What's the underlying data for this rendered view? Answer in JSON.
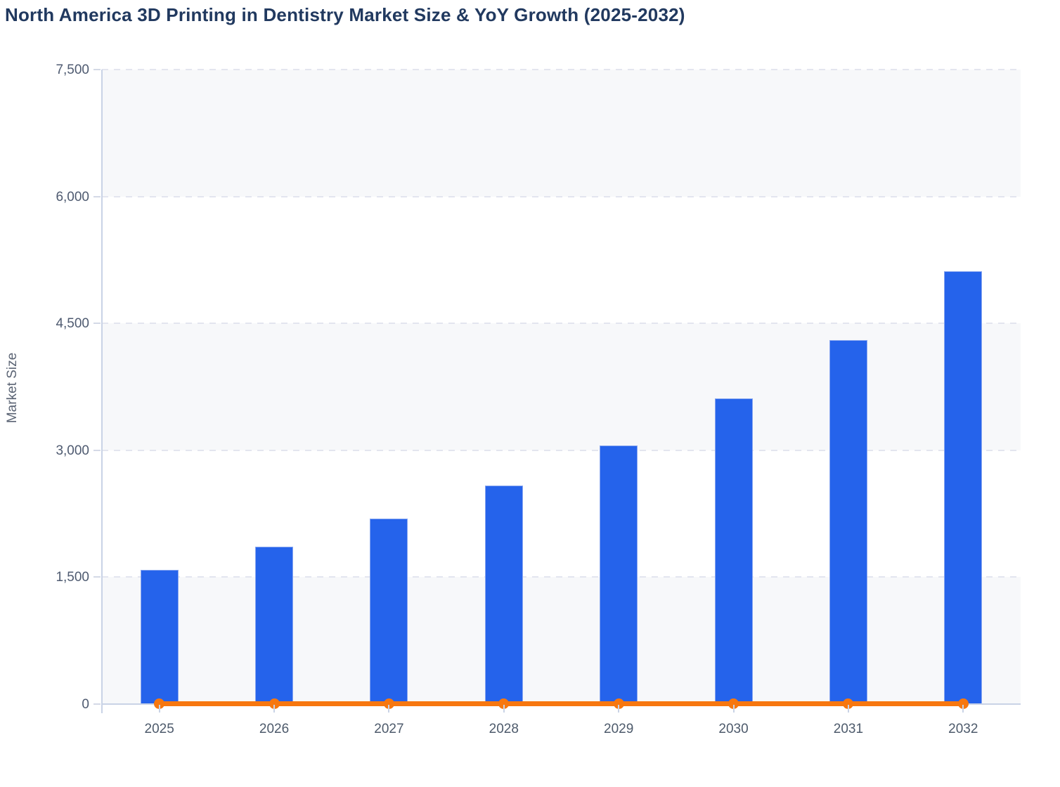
{
  "title": "North America 3D Printing in Dentistry Market Size & YoY Growth (2025-2032)",
  "chart_data": {
    "type": "bar",
    "title": "North America 3D Printing in Dentistry Market Size & YoY Growth (2025-2032)",
    "xlabel": "",
    "ylabel": "Market Size",
    "categories": [
      "2025",
      "2026",
      "2027",
      "2028",
      "2029",
      "2030",
      "2031",
      "2032"
    ],
    "series": [
      {
        "name": "Market Size",
        "type": "bar",
        "color": "#2563eb",
        "values": [
          1590,
          1860,
          2190,
          2580,
          3060,
          3610,
          4300,
          5120
        ]
      },
      {
        "name": "YoY Growth",
        "type": "line",
        "color": "#f7770f",
        "marker": "circle",
        "values": [
          0,
          0,
          0,
          0,
          0,
          0,
          0,
          0
        ],
        "note": "line renders flat along the zero baseline with a round marker at every year; no secondary axis labels are visible"
      }
    ],
    "ylim": [
      0,
      7500
    ],
    "yticks": [
      0,
      1500,
      3000,
      4500,
      6000,
      7500
    ],
    "ytick_labels": [
      "0",
      "1,500",
      "3,000",
      "4,500",
      "6,000",
      "7,500"
    ],
    "grid": "dashed horizontal gridlines at every 1,500",
    "alternating_bands": "light gray bands fill ranges 0-1500, 3000-4500, 6000-7500",
    "legend": "none"
  },
  "colors": {
    "title_text": "#21395f",
    "bar_blue": "#2563eb",
    "line_orange": "#f7770f",
    "axis_text": "#4e5a70",
    "axis_line": "#c9d3e6",
    "gridline": "#e3e5ef",
    "band_gray": "#f7f8fa",
    "background": "#ffffff"
  }
}
